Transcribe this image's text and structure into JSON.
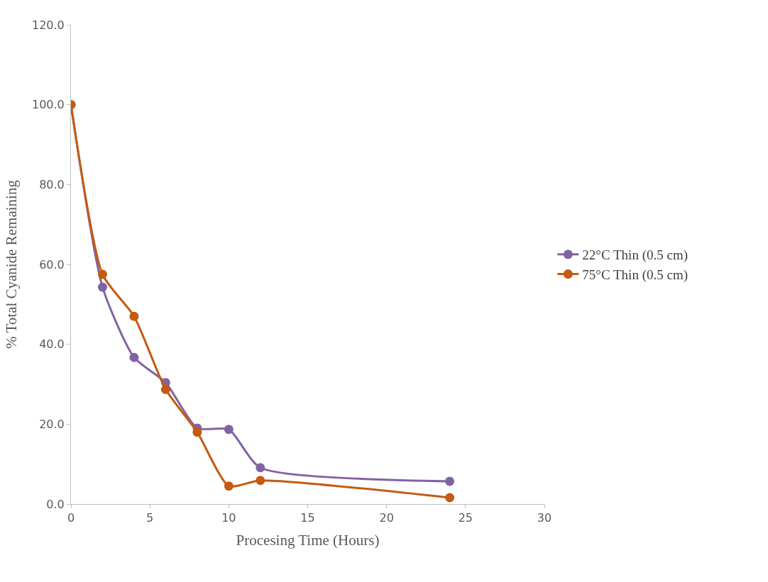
{
  "chart_data": {
    "type": "line",
    "xlabel": "Procesing Time (Hours)",
    "ylabel": "% Total Cyanide Remaining",
    "series": [
      {
        "name": "22°C Thin (0.5 cm)",
        "color": "#8064a2",
        "x": [
          0,
          2,
          4,
          6,
          8,
          10,
          12,
          24
        ],
        "values": [
          100,
          54.3,
          36.7,
          30.4,
          19.0,
          18.7,
          9.1,
          5.7
        ]
      },
      {
        "name": "75°C Thin (0.5 cm)",
        "color": "#c55a11",
        "x": [
          0,
          2,
          4,
          6,
          8,
          10,
          12,
          24
        ],
        "values": [
          100,
          57.5,
          47.0,
          28.7,
          18.0,
          4.5,
          5.9,
          1.6
        ]
      }
    ],
    "xlim": [
      0,
      30
    ],
    "xticks": [
      0,
      5,
      10,
      15,
      20,
      25,
      30
    ],
    "ylim": [
      0,
      120
    ],
    "yticks": [
      {
        "value": 0,
        "label": "0.0"
      },
      {
        "value": 20,
        "label": "20.0"
      },
      {
        "value": 40,
        "label": "40.0"
      },
      {
        "value": 60,
        "label": "60.0"
      },
      {
        "value": 80,
        "label": "80.0"
      },
      {
        "value": 100,
        "label": "100.0"
      },
      {
        "value": 120,
        "label": "120.0"
      }
    ],
    "legend": "right",
    "marker": "circle",
    "line_style": "solid"
  }
}
